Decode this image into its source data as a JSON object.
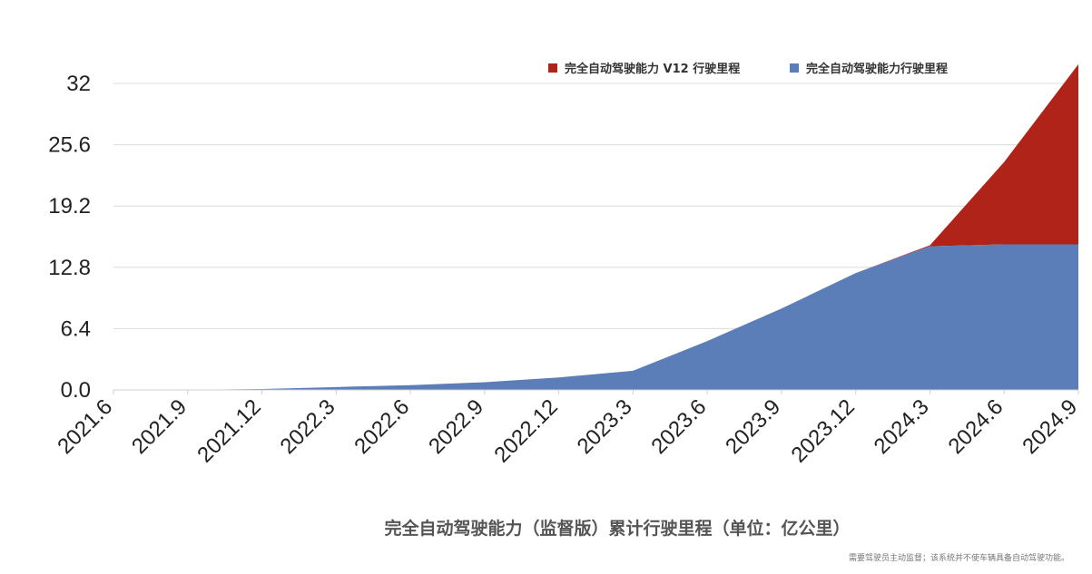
{
  "chart_data": {
    "type": "area",
    "title": "完全自动驾驶能力（监督版）累计行驶里程（单位：亿公里）",
    "note": "需要驾驶员主动监督；该系统并不使车辆具备自动驾驶功能。",
    "categories": [
      "2021.6",
      "2021.9",
      "2021.12",
      "2022.3",
      "2022.6",
      "2022.9",
      "2022.12",
      "2023.3",
      "2023.6",
      "2023.9",
      "2023.12",
      "2024.3",
      "2024.6",
      "2024.9"
    ],
    "y_ticks": [
      "0.0",
      "6.4",
      "12.8",
      "19.2",
      "25.6",
      "32"
    ],
    "ylim": [
      0,
      32
    ],
    "stacked": true,
    "legend_position": "top-right",
    "grid": true,
    "series": [
      {
        "name": "完全自动驾驶能力行驶里程",
        "color": "#5b7db8",
        "values": [
          0,
          0,
          0.1,
          0.3,
          0.5,
          0.8,
          1.3,
          2.0,
          5.1,
          8.5,
          12.2,
          15.0,
          15.2,
          15.2
        ]
      },
      {
        "name": "完全自动驾驶能力 V12 行驶里程",
        "color": "#b02318",
        "values": [
          0,
          0,
          0,
          0,
          0,
          0,
          0,
          0,
          0,
          0,
          0,
          0.1,
          8.6,
          18.8
        ]
      }
    ]
  }
}
